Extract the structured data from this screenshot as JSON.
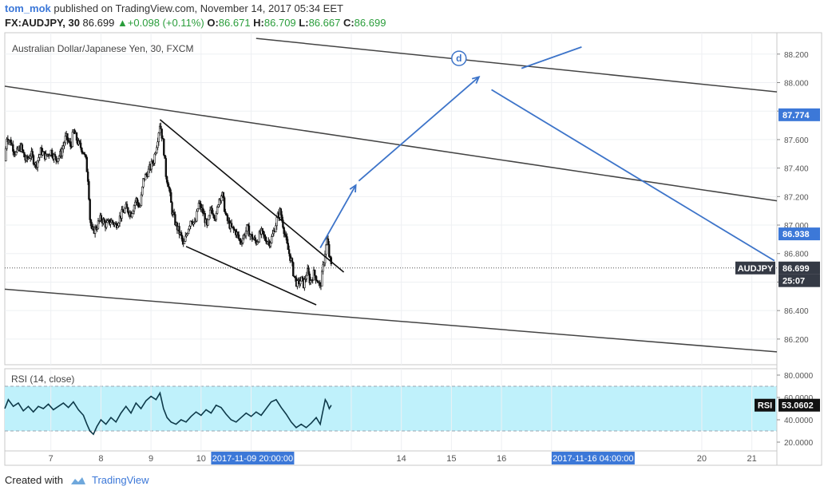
{
  "header": {
    "author": "tom_mok",
    "published_text": "published on TradingView.com, November 14, 2017 05:34 EET",
    "symbol_line": "FX:AUDJPY, 30",
    "last": "86.699",
    "change": "+0.098 (+0.11%)",
    "open_label": "O:",
    "open": "86.671",
    "high_label": "H:",
    "high": "86.709",
    "low_label": "L:",
    "low": "86.667",
    "close_label": "C:",
    "close": "86.699"
  },
  "footer": {
    "created_with": "Created with",
    "brand": "TradingView"
  },
  "colors": {
    "up": "#2a9d3b",
    "accent": "#3c78d8",
    "trend": "#3d74c9",
    "rsi_bg": "#bff1fb",
    "rsi_line": "#0e3a4a",
    "tag_dark": "#353a45",
    "tag_blue": "#3c78d8"
  },
  "chart_data": [
    {
      "type": "candlestick",
      "title": "Australian Dollar/Japanese Yen, 30, FXCM",
      "y_ticks": [
        88.2,
        88.0,
        87.8,
        87.6,
        87.4,
        87.2,
        87.0,
        86.8,
        86.6,
        86.4,
        86.2
      ],
      "y_tick_labels": [
        "88.200",
        "88.000",
        "87.800",
        "87.600",
        "87.400",
        "87.200",
        "87.000",
        "86.800",
        "86.600",
        "86.400",
        "86.200"
      ],
      "ylim": [
        86.02,
        88.35
      ],
      "x_ticks": [
        7,
        8,
        9,
        10,
        11,
        13,
        14,
        15,
        16,
        17,
        20,
        21
      ],
      "x_tick_labels": [
        "7",
        "8",
        "9",
        "10",
        "",
        "",
        "14",
        "15",
        "16",
        "",
        "20",
        "21"
      ],
      "xlim": [
        6.08,
        21.5
      ],
      "x_tags": [
        {
          "x": 11.03,
          "text": "2017-11-09 20:00:00"
        },
        {
          "x": 17.83,
          "text": "2017-11-16 04:00:00"
        }
      ],
      "price_tags": [
        {
          "value": 87.774,
          "text": "87.774",
          "style": "blue"
        },
        {
          "value": 86.938,
          "text": "86.938",
          "style": "blue"
        },
        {
          "value": 86.699,
          "text": "86.699",
          "style": "dark",
          "name": "AUDJPY"
        },
        {
          "value": 86.61,
          "text": "25:07",
          "style": "dark"
        }
      ],
      "last_price": 86.699,
      "close_path": [
        [
          6.08,
          87.45
        ],
        [
          6.12,
          87.62
        ],
        [
          6.2,
          87.58
        ],
        [
          6.3,
          87.5
        ],
        [
          6.4,
          87.55
        ],
        [
          6.5,
          87.45
        ],
        [
          6.6,
          87.5
        ],
        [
          6.7,
          87.42
        ],
        [
          6.8,
          87.52
        ],
        [
          6.9,
          87.48
        ],
        [
          7.0,
          87.52
        ],
        [
          7.1,
          87.46
        ],
        [
          7.2,
          87.5
        ],
        [
          7.3,
          87.62
        ],
        [
          7.4,
          87.55
        ],
        [
          7.45,
          87.66
        ],
        [
          7.55,
          87.57
        ],
        [
          7.65,
          87.52
        ],
        [
          7.7,
          87.45
        ],
        [
          7.75,
          87.3
        ],
        [
          7.78,
          87.05
        ],
        [
          7.82,
          86.95
        ],
        [
          7.9,
          86.98
        ],
        [
          8.0,
          87.05
        ],
        [
          8.1,
          87.0
        ],
        [
          8.2,
          87.03
        ],
        [
          8.3,
          87.0
        ],
        [
          8.4,
          87.07
        ],
        [
          8.5,
          87.12
        ],
        [
          8.6,
          87.08
        ],
        [
          8.7,
          87.18
        ],
        [
          8.78,
          87.12
        ],
        [
          8.85,
          87.32
        ],
        [
          8.95,
          87.38
        ],
        [
          9.05,
          87.45
        ],
        [
          9.12,
          87.58
        ],
        [
          9.18,
          87.72
        ],
        [
          9.25,
          87.55
        ],
        [
          9.3,
          87.35
        ],
        [
          9.35,
          87.28
        ],
        [
          9.42,
          87.1
        ],
        [
          9.5,
          87.0
        ],
        [
          9.6,
          86.92
        ],
        [
          9.65,
          86.85
        ],
        [
          9.72,
          86.95
        ],
        [
          9.8,
          87.05
        ],
        [
          9.88,
          87.0
        ],
        [
          9.95,
          87.15
        ],
        [
          10.05,
          87.08
        ],
        [
          10.12,
          86.98
        ],
        [
          10.2,
          87.12
        ],
        [
          10.3,
          87.05
        ],
        [
          10.35,
          87.18
        ],
        [
          10.42,
          87.22
        ],
        [
          10.5,
          87.05
        ],
        [
          10.6,
          86.98
        ],
        [
          10.7,
          86.95
        ],
        [
          10.78,
          86.88
        ],
        [
          10.85,
          86.92
        ],
        [
          10.92,
          86.98
        ],
        [
          11.0,
          86.92
        ],
        [
          11.1,
          86.88
        ],
        [
          11.2,
          86.95
        ],
        [
          11.28,
          86.9
        ],
        [
          11.38,
          86.88
        ],
        [
          11.45,
          86.95
        ],
        [
          11.52,
          87.05
        ],
        [
          11.58,
          87.1
        ],
        [
          11.65,
          86.98
        ],
        [
          11.72,
          86.85
        ],
        [
          11.8,
          86.75
        ],
        [
          11.85,
          86.65
        ],
        [
          11.92,
          86.58
        ],
        [
          12.0,
          86.62
        ],
        [
          12.05,
          86.58
        ],
        [
          12.12,
          86.68
        ],
        [
          12.18,
          86.6
        ],
        [
          12.25,
          86.66
        ],
        [
          12.32,
          86.62
        ],
        [
          12.38,
          86.56
        ],
        [
          12.42,
          86.66
        ],
        [
          12.48,
          86.82
        ],
        [
          12.52,
          86.9
        ],
        [
          12.56,
          86.78
        ],
        [
          12.6,
          86.71
        ]
      ],
      "trend_lines": [
        {
          "name": "outer-channel-upper",
          "points": [
            [
              6.08,
              87.975
            ],
            [
              21.5,
              87.17
            ]
          ]
        },
        {
          "name": "outer-channel-lower",
          "points": [
            [
              6.08,
              86.55
            ],
            [
              21.5,
              86.11
            ]
          ]
        },
        {
          "name": "wedge-upper",
          "points": [
            [
              9.18,
              87.74
            ],
            [
              12.85,
              86.67
            ]
          ]
        },
        {
          "name": "wedge-lower",
          "points": [
            [
              9.7,
              86.85
            ],
            [
              12.3,
              86.44
            ]
          ]
        },
        {
          "name": "top-channel-line",
          "points": [
            [
              11.1,
              88.31
            ],
            [
              21.5,
              87.935
            ]
          ]
        }
      ],
      "projection": [
        {
          "name": "projection-up-1",
          "points": [
            [
              12.38,
              86.84
            ],
            [
              13.09,
              87.28
            ]
          ]
        },
        {
          "name": "projection-up-2",
          "points": [
            [
              13.15,
              87.31
            ],
            [
              15.55,
              88.04
            ]
          ]
        },
        {
          "name": "projection-down",
          "points": [
            [
              15.8,
              87.95
            ],
            [
              21.45,
              86.75
            ]
          ]
        },
        {
          "name": "projection-up-3",
          "points": [
            [
              16.4,
              88.1
            ],
            [
              17.6,
              88.25
            ]
          ]
        }
      ],
      "wave_label": {
        "text": "d",
        "x": 15.15,
        "y": 88.17
      }
    },
    {
      "type": "line",
      "title": "RSI (14, close)",
      "y_ticks": [
        80,
        60,
        40,
        20
      ],
      "y_tick_labels": [
        "80.0000",
        "60.0000",
        "40.0000",
        "20.0000"
      ],
      "ylim": [
        20,
        80
      ],
      "band": [
        30,
        70
      ],
      "last_value": 53.0602,
      "last_label": "53.0602",
      "tag_name": "RSI",
      "values": [
        [
          6.08,
          50
        ],
        [
          6.15,
          58
        ],
        [
          6.25,
          52
        ],
        [
          6.35,
          55
        ],
        [
          6.45,
          48
        ],
        [
          6.55,
          52
        ],
        [
          6.65,
          47
        ],
        [
          6.75,
          52
        ],
        [
          6.85,
          50
        ],
        [
          6.95,
          54
        ],
        [
          7.05,
          49
        ],
        [
          7.15,
          52
        ],
        [
          7.25,
          55
        ],
        [
          7.35,
          51
        ],
        [
          7.45,
          56
        ],
        [
          7.55,
          49
        ],
        [
          7.65,
          44
        ],
        [
          7.72,
          36
        ],
        [
          7.78,
          30
        ],
        [
          7.85,
          27
        ],
        [
          7.92,
          34
        ],
        [
          8.0,
          40
        ],
        [
          8.1,
          36
        ],
        [
          8.2,
          42
        ],
        [
          8.3,
          38
        ],
        [
          8.4,
          46
        ],
        [
          8.5,
          52
        ],
        [
          8.6,
          46
        ],
        [
          8.7,
          55
        ],
        [
          8.8,
          50
        ],
        [
          8.9,
          57
        ],
        [
          9.0,
          61
        ],
        [
          9.1,
          58
        ],
        [
          9.18,
          64
        ],
        [
          9.25,
          50
        ],
        [
          9.32,
          42
        ],
        [
          9.4,
          38
        ],
        [
          9.5,
          36
        ],
        [
          9.6,
          40
        ],
        [
          9.7,
          38
        ],
        [
          9.8,
          43
        ],
        [
          9.9,
          47
        ],
        [
          10.0,
          44
        ],
        [
          10.1,
          49
        ],
        [
          10.2,
          46
        ],
        [
          10.3,
          53
        ],
        [
          10.4,
          51
        ],
        [
          10.5,
          45
        ],
        [
          10.6,
          40
        ],
        [
          10.7,
          38
        ],
        [
          10.8,
          42
        ],
        [
          10.9,
          46
        ],
        [
          11.0,
          43
        ],
        [
          11.1,
          47
        ],
        [
          11.2,
          44
        ],
        [
          11.3,
          50
        ],
        [
          11.4,
          56
        ],
        [
          11.5,
          58
        ],
        [
          11.6,
          51
        ],
        [
          11.7,
          45
        ],
        [
          11.8,
          38
        ],
        [
          11.9,
          33
        ],
        [
          12.0,
          36
        ],
        [
          12.1,
          33
        ],
        [
          12.2,
          37
        ],
        [
          12.3,
          42
        ],
        [
          12.38,
          36
        ],
        [
          12.42,
          45
        ],
        [
          12.48,
          58
        ],
        [
          12.52,
          55
        ],
        [
          12.56,
          50
        ],
        [
          12.6,
          53.06
        ]
      ]
    }
  ]
}
